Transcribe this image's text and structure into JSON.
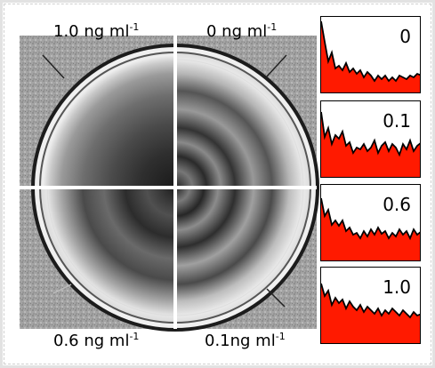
{
  "figure": {
    "quadrants": [
      {
        "id": "top-left",
        "concentration": "1.0 ng ml",
        "unit_exponent": "-1"
      },
      {
        "id": "top-right",
        "concentration": "0 ng ml",
        "unit_exponent": "-1"
      },
      {
        "id": "bottom-left",
        "concentration": "0.6 ng ml",
        "unit_exponent": "-1"
      },
      {
        "id": "bottom-right",
        "concentration": "0.1ng ml",
        "unit_exponent": "-1"
      }
    ],
    "profiles": [
      {
        "label": "0"
      },
      {
        "label": "0.1"
      },
      {
        "label": "0.6"
      },
      {
        "label": "1.0"
      }
    ],
    "colors": {
      "profile_fill": "#ff1a00",
      "profile_line": "#000000",
      "background_texture": "#9a9a9a",
      "plate_rim": "#f2f2f2",
      "divider": "#ffffff"
    }
  }
}
